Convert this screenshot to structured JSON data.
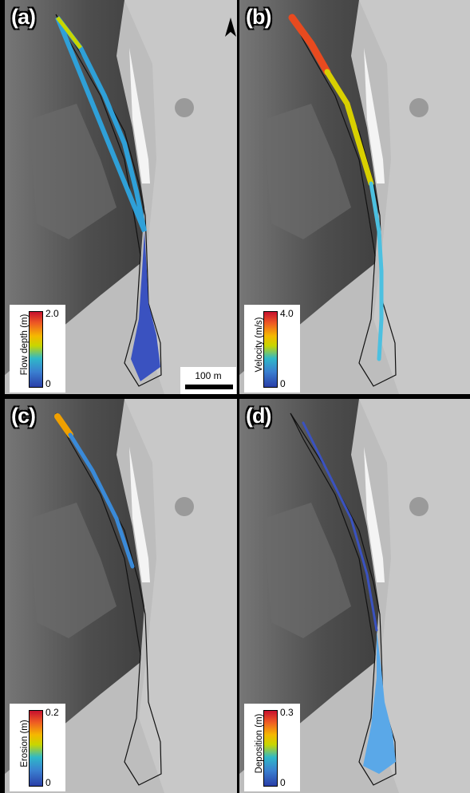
{
  "panels": [
    {
      "id": "a",
      "label": "(a)",
      "legend_title": "Flow depth (m)",
      "legend_max": "2.0",
      "legend_min": "0"
    },
    {
      "id": "b",
      "label": "(b)",
      "legend_title": "Velocity (m/s)",
      "legend_max": "4.0",
      "legend_min": "0"
    },
    {
      "id": "c",
      "label": "(c)",
      "legend_title": "Erosion (m)",
      "legend_max": "0.2",
      "legend_min": "0"
    },
    {
      "id": "d",
      "label": "(d)",
      "legend_title": "Deposition (m)",
      "legend_max": "0.3",
      "legend_min": "0"
    }
  ],
  "scale_bar": {
    "label": "100 m"
  },
  "icons": {
    "north_arrow": "north-arrow-icon"
  },
  "colors": {
    "low": "#2a3fa8",
    "mid": "#c8d600",
    "high": "#c8102e",
    "outline": "#111111"
  }
}
